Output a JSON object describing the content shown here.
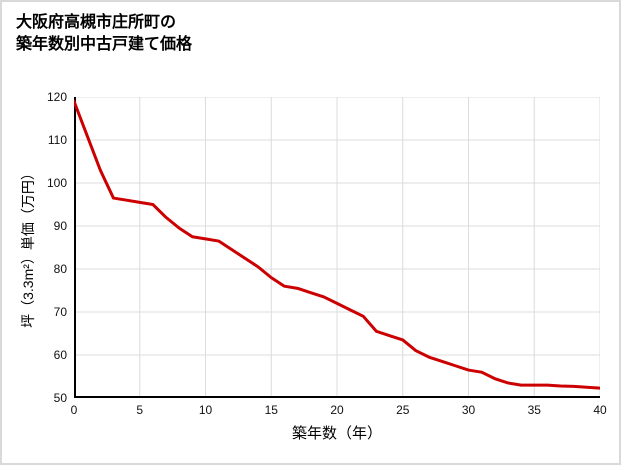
{
  "page": {
    "title_line1": "大阪府高槻市庄所町の",
    "title_line2": "築年数別中古戸建て価格",
    "border_color": "#d9d9d9"
  },
  "chart_data": {
    "type": "line",
    "title": "大阪府高槻市庄所町の築年数別中古戸建て価格",
    "xlabel": "築年数（年）",
    "ylabel": "坪（3.3m²）単価（万円）",
    "xlim": [
      0,
      40
    ],
    "ylim": [
      50,
      120
    ],
    "x_ticks": [
      0,
      5,
      10,
      15,
      20,
      25,
      30,
      35,
      40
    ],
    "y_ticks": [
      50,
      60,
      70,
      80,
      90,
      100,
      110,
      120
    ],
    "grid": true,
    "legend": false,
    "line_color": "#cc0000",
    "grid_color": "#dcdcdc",
    "axis_color": "#000000",
    "x": [
      0,
      1,
      2,
      3,
      4,
      5,
      6,
      7,
      8,
      9,
      10,
      11,
      12,
      13,
      14,
      15,
      16,
      17,
      18,
      19,
      20,
      21,
      22,
      23,
      24,
      25,
      26,
      27,
      28,
      29,
      30,
      31,
      32,
      33,
      34,
      35,
      36,
      37,
      38,
      39,
      40
    ],
    "y": [
      119,
      111,
      103,
      96.5,
      96,
      95.5,
      95,
      92,
      89.5,
      87.5,
      87,
      86.5,
      84.5,
      82.5,
      80.5,
      78,
      76,
      75.5,
      74.5,
      73.5,
      72,
      70.5,
      69,
      65.5,
      64.5,
      63.5,
      61,
      59.5,
      58.5,
      57.5,
      56.5,
      56,
      54.5,
      53.5,
      53,
      53,
      53,
      52.8,
      52.7,
      52.5,
      52.3
    ]
  }
}
